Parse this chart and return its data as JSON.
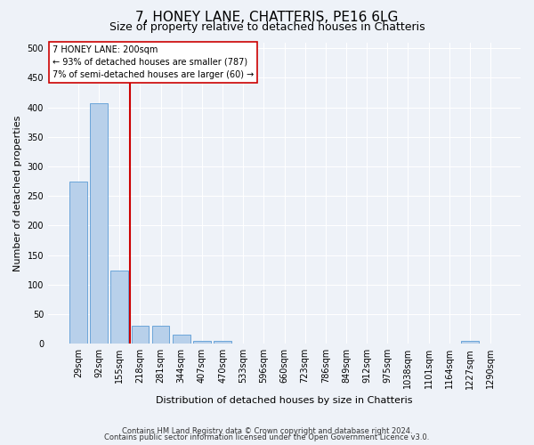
{
  "title": "7, HONEY LANE, CHATTERIS, PE16 6LG",
  "subtitle": "Size of property relative to detached houses in Chatteris",
  "xlabel": "Distribution of detached houses by size in Chatteris",
  "ylabel": "Number of detached properties",
  "bar_labels": [
    "29sqm",
    "92sqm",
    "155sqm",
    "218sqm",
    "281sqm",
    "344sqm",
    "407sqm",
    "470sqm",
    "533sqm",
    "596sqm",
    "660sqm",
    "723sqm",
    "786sqm",
    "849sqm",
    "912sqm",
    "975sqm",
    "1038sqm",
    "1101sqm",
    "1164sqm",
    "1227sqm",
    "1290sqm"
  ],
  "bar_values": [
    275,
    407,
    123,
    30,
    30,
    16,
    5,
    5,
    0,
    0,
    0,
    0,
    0,
    0,
    0,
    0,
    0,
    0,
    0,
    5,
    0
  ],
  "bar_color": "#b8d0ea",
  "bar_edge_color": "#5b9bd5",
  "vline_x": 2.5,
  "vline_color": "#cc0000",
  "annotation_text": "7 HONEY LANE: 200sqm\n← 93% of detached houses are smaller (787)\n7% of semi-detached houses are larger (60) →",
  "annotation_box_color": "#ffffff",
  "annotation_box_edge_color": "#cc0000",
  "ylim": [
    0,
    510
  ],
  "yticks": [
    0,
    50,
    100,
    150,
    200,
    250,
    300,
    350,
    400,
    450,
    500
  ],
  "footer1": "Contains HM Land Registry data © Crown copyright and database right 2024.",
  "footer2": "Contains public sector information licensed under the Open Government Licence v3.0.",
  "bg_color": "#eef2f8",
  "grid_color": "#ffffff",
  "title_fontsize": 11,
  "subtitle_fontsize": 9,
  "tick_fontsize": 7,
  "ylabel_fontsize": 8,
  "xlabel_fontsize": 8,
  "annotation_fontsize": 7,
  "footer_fontsize": 6
}
